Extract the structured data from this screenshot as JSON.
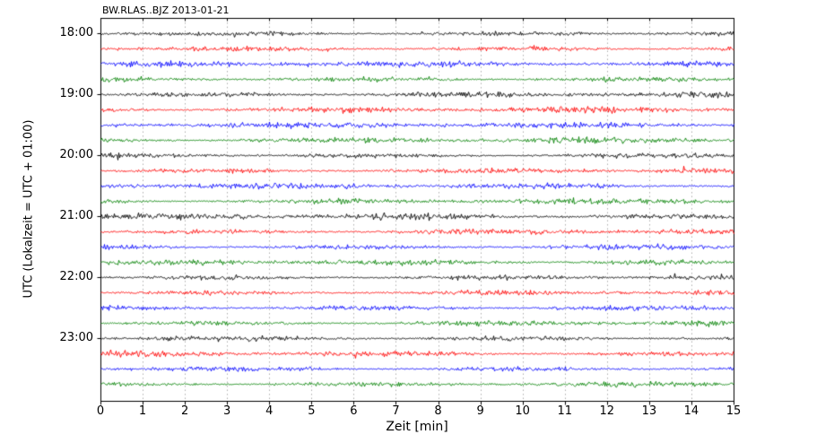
{
  "chart_data": {
    "type": "line",
    "subtype": "seismogram-dayplot",
    "title": "BW.RLAS..BJZ 2013-01-21",
    "xlabel": "Zeit  [min]",
    "ylabel": "UTC (Lokalzeit = UTC + 01:00)",
    "xlim": [
      0,
      15
    ],
    "x_tick_labels": [
      "0",
      "1",
      "2",
      "3",
      "4",
      "5",
      "6",
      "7",
      "8",
      "9",
      "10",
      "11",
      "12",
      "13",
      "14",
      "15"
    ],
    "y_tick_labels": [
      "18:00",
      "19:00",
      "20:00",
      "21:00",
      "22:00",
      "23:00"
    ],
    "y_tick_rows": [
      0,
      4,
      8,
      12,
      16,
      20
    ],
    "num_traces": 24,
    "traces_per_hour": 4,
    "minutes_per_trace": 15,
    "trace_color_cycle": [
      "#000000",
      "#ff0000",
      "#0000ff",
      "#008000"
    ],
    "grid": {
      "vertical": true,
      "horizontal": false,
      "style": "dashed",
      "color": "#9a9a9a"
    },
    "axes_color": "#000000",
    "background_color": "#ffffff",
    "series_note": "24 continuous noise waveform traces (ambient seismic noise), one 15-minute segment per row, colors cycling black/red/blue/green, no visible events"
  }
}
